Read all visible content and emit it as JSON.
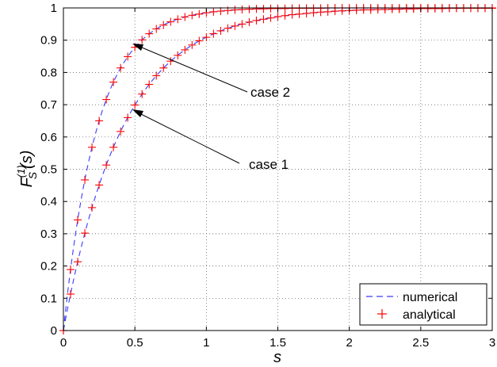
{
  "chart_data": {
    "type": "line",
    "title": "",
    "xlabel": "s",
    "ylabel_main": "F",
    "ylabel_sup": "(1)",
    "ylabel_sub": "S",
    "ylabel_arg": "(s)",
    "xlim": [
      0,
      3
    ],
    "ylim": [
      0,
      1
    ],
    "xticks": [
      "0",
      "0.5",
      "1",
      "1.5",
      "2",
      "2.5",
      "3"
    ],
    "yticks": [
      "0",
      "0.1",
      "0.2",
      "0.3",
      "0.4",
      "0.5",
      "0.6",
      "0.7",
      "0.8",
      "0.9",
      "1"
    ],
    "grid": true,
    "legend_position": "bottom-right",
    "series_styles": [
      {
        "name": "numerical",
        "style": "dashed-line",
        "color": "#3b3bff"
      },
      {
        "name": "analytical",
        "style": "plus-markers",
        "color": "#ff0000"
      }
    ],
    "curves": [
      {
        "label": "case 1",
        "rate": 2.4,
        "x": [
          0,
          0.05,
          0.1,
          0.15,
          0.2,
          0.25,
          0.3,
          0.35,
          0.4,
          0.45,
          0.5,
          0.55,
          0.6,
          0.65,
          0.7,
          0.75,
          0.8,
          0.85,
          0.9,
          0.95,
          1.0,
          1.05,
          1.1,
          1.15,
          1.2,
          1.25,
          1.3,
          1.35,
          1.4,
          1.45,
          1.5,
          1.55,
          1.6,
          1.65,
          1.7,
          1.75,
          1.8,
          1.85,
          1.9,
          1.95,
          2.0,
          2.05,
          2.1,
          2.15,
          2.2,
          2.25,
          2.3,
          2.35,
          2.4,
          2.45,
          2.5,
          2.55,
          2.6,
          2.65,
          2.7,
          2.75,
          2.8,
          2.85,
          2.9,
          2.95,
          3.0
        ],
        "y": [
          0,
          0.113,
          0.213,
          0.302,
          0.381,
          0.451,
          0.513,
          0.568,
          0.617,
          0.66,
          0.699,
          0.733,
          0.763,
          0.79,
          0.814,
          0.835,
          0.853,
          0.87,
          0.885,
          0.898,
          0.909,
          0.92,
          0.929,
          0.937,
          0.944,
          0.95,
          0.956,
          0.961,
          0.965,
          0.969,
          0.973,
          0.976,
          0.979,
          0.981,
          0.983,
          0.985,
          0.987,
          0.988,
          0.99,
          0.991,
          0.992,
          0.993,
          0.994,
          0.994,
          0.995,
          0.995,
          0.996,
          0.996,
          0.997,
          0.997,
          0.998,
          0.998,
          0.998,
          0.998,
          0.999,
          0.999,
          0.999,
          0.999,
          0.999,
          0.999,
          0.999
        ]
      },
      {
        "label": "case 2",
        "rate": 4.2,
        "x": [
          0,
          0.05,
          0.1,
          0.15,
          0.2,
          0.25,
          0.3,
          0.35,
          0.4,
          0.45,
          0.5,
          0.55,
          0.6,
          0.65,
          0.7,
          0.75,
          0.8,
          0.85,
          0.9,
          0.95,
          1.0,
          1.05,
          1.1,
          1.15,
          1.2,
          1.25,
          1.3,
          1.35,
          1.4,
          1.45,
          1.5,
          1.55,
          1.6,
          1.65,
          1.7,
          1.75,
          1.8,
          1.85,
          1.9,
          1.95,
          2.0,
          2.05,
          2.1,
          2.15,
          2.2,
          2.25,
          2.3,
          2.35,
          2.4,
          2.45,
          2.5,
          2.55,
          2.6,
          2.65,
          2.7,
          2.75,
          2.8,
          2.85,
          2.9,
          2.95,
          3.0
        ],
        "y": [
          0,
          0.189,
          0.343,
          0.467,
          0.568,
          0.65,
          0.716,
          0.77,
          0.814,
          0.849,
          0.878,
          0.901,
          0.92,
          0.935,
          0.947,
          0.957,
          0.965,
          0.972,
          0.977,
          0.981,
          0.985,
          0.988,
          0.99,
          0.992,
          0.994,
          0.995,
          0.996,
          0.997,
          0.997,
          0.998,
          0.998,
          0.998,
          0.999,
          0.999,
          0.999,
          0.999,
          0.999,
          1.0,
          1.0,
          1.0,
          1.0,
          1.0,
          1.0,
          1.0,
          1.0,
          1.0,
          1.0,
          1.0,
          1.0,
          1.0,
          1.0,
          1.0,
          1.0,
          1.0,
          1.0,
          1.0,
          1.0,
          1.0,
          1.0,
          1.0,
          1.0
        ]
      }
    ],
    "annotations": [
      {
        "text": "case 2",
        "arrow_to": [
          0.5,
          0.878
        ]
      },
      {
        "text": "case 1",
        "arrow_to": [
          0.5,
          0.699
        ]
      }
    ]
  }
}
